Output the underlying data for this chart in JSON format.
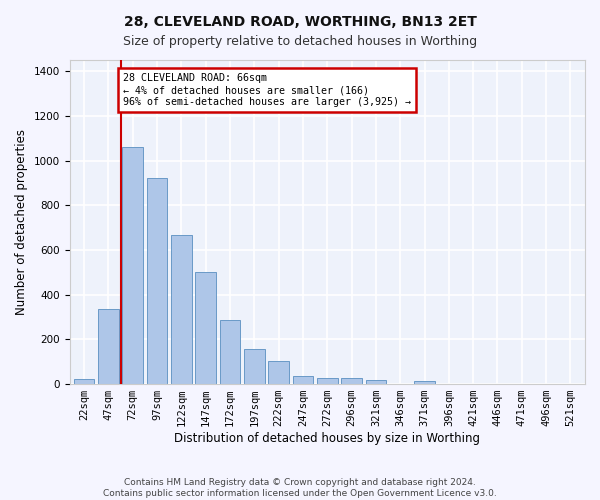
{
  "title1": "28, CLEVELAND ROAD, WORTHING, BN13 2ET",
  "title2": "Size of property relative to detached houses in Worthing",
  "xlabel": "Distribution of detached houses by size in Worthing",
  "ylabel": "Number of detached properties",
  "footnote": "Contains HM Land Registry data © Crown copyright and database right 2024.\nContains public sector information licensed under the Open Government Licence v3.0.",
  "bar_labels": [
    "22sqm",
    "47sqm",
    "72sqm",
    "97sqm",
    "122sqm",
    "147sqm",
    "172sqm",
    "197sqm",
    "222sqm",
    "247sqm",
    "272sqm",
    "296sqm",
    "321sqm",
    "346sqm",
    "371sqm",
    "396sqm",
    "421sqm",
    "446sqm",
    "471sqm",
    "496sqm",
    "521sqm"
  ],
  "bar_values": [
    22,
    335,
    1060,
    920,
    665,
    500,
    285,
    155,
    105,
    38,
    25,
    25,
    18,
    0,
    12,
    0,
    0,
    0,
    0,
    0,
    0
  ],
  "bar_color": "#aec6e8",
  "bar_edge_color": "#5a8fc0",
  "annotation_text": "28 CLEVELAND ROAD: 66sqm\n← 4% of detached houses are smaller (166)\n96% of semi-detached houses are larger (3,925) →",
  "annotation_box_color": "#ffffff",
  "annotation_box_edge": "#cc0000",
  "vline_color": "#cc0000",
  "vline_x": 1.5,
  "ylim": [
    0,
    1450
  ],
  "yticks": [
    0,
    200,
    400,
    600,
    800,
    1000,
    1200,
    1400
  ],
  "bg_color": "#eef2fb",
  "grid_color": "#ffffff",
  "title1_fontsize": 10,
  "title2_fontsize": 9,
  "axis_label_fontsize": 8.5,
  "tick_fontsize": 7.5,
  "footnote_fontsize": 6.5
}
